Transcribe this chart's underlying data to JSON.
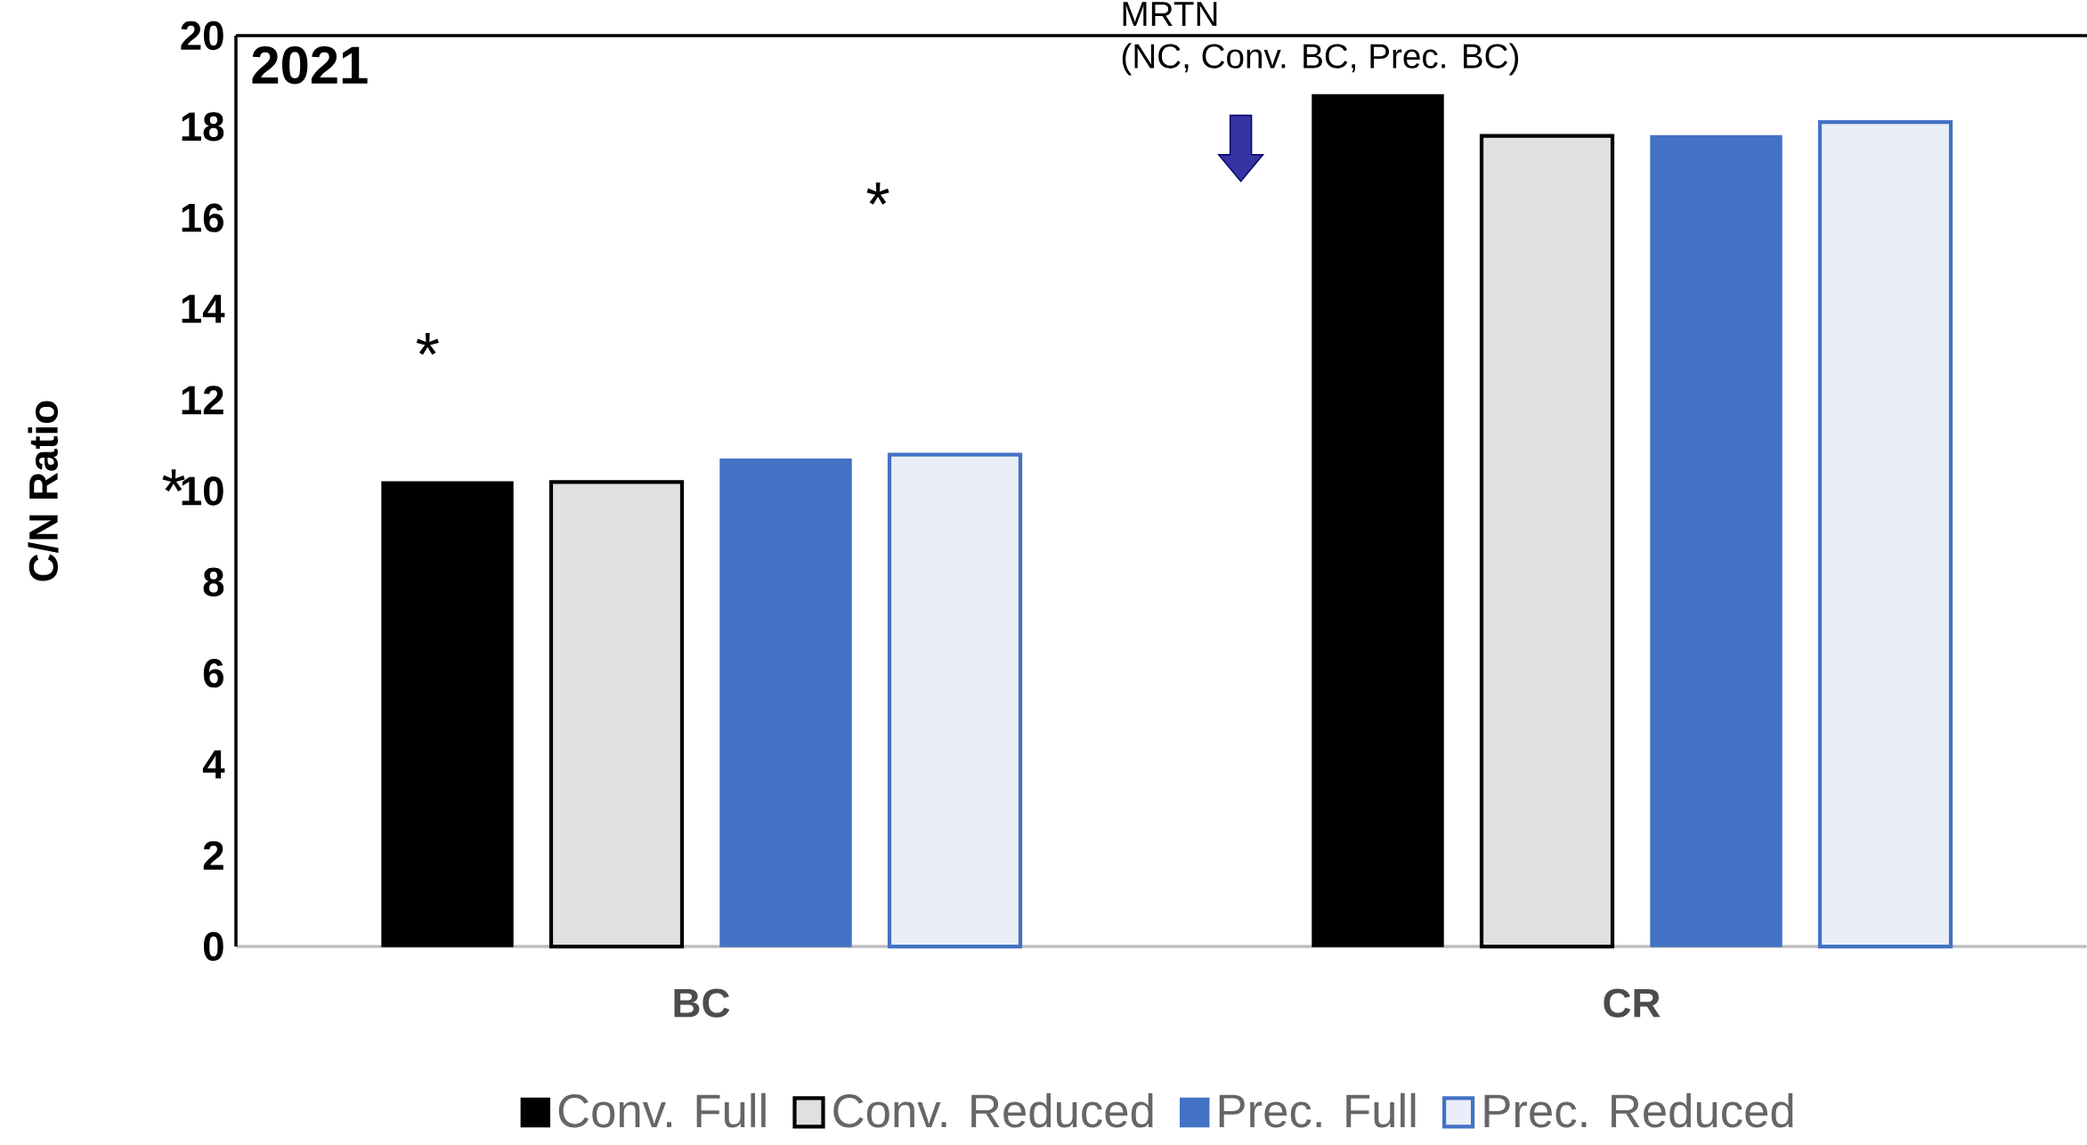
{
  "chart_data": {
    "type": "bar",
    "title": "2021",
    "ylabel": "C/N Ratio",
    "categories": [
      "BC",
      "CR"
    ],
    "series": [
      {
        "name": "Conv. Full",
        "color": "#000000",
        "values": [
          10.2,
          18.7
        ]
      },
      {
        "name": "Conv. Reduced",
        "color": "#000000",
        "values": [
          10.2,
          17.8
        ]
      },
      {
        "name": "Prec. Full",
        "color": "#4472c4",
        "values": [
          10.7,
          17.8
        ]
      },
      {
        "name": "Prec. Reduced",
        "color": "#4472c4",
        "values": [
          10.8,
          18.1
        ]
      }
    ],
    "ylim": [
      0,
      20
    ],
    "yticks": [
      0,
      2,
      4,
      6,
      8,
      10,
      12,
      14,
      16,
      18,
      20
    ],
    "legend": "bottom",
    "annotations": [
      "*",
      "*",
      "*",
      "MRTN\n(NC, Conv. BC, Prec. BC)"
    ]
  }
}
